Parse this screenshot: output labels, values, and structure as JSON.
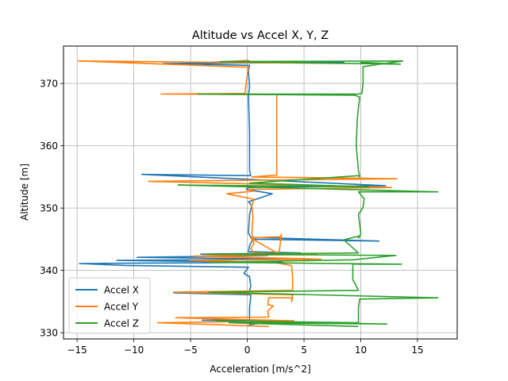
{
  "chart_data": {
    "type": "line",
    "title": "Altitude vs Accel X, Y, Z",
    "xlabel": "Acceleration [m/s^2]",
    "ylabel": "Altitude [m]",
    "xlim": [
      -16.2,
      18.5
    ],
    "ylim": [
      329,
      376
    ],
    "xticks": [
      -15,
      -10,
      -5,
      0,
      5,
      10,
      15
    ],
    "yticks": [
      330,
      340,
      350,
      360,
      370
    ],
    "grid": true,
    "legend_position": "lower-left",
    "series": [
      {
        "name": "Accel X",
        "color": "#1f77b4",
        "points": [
          [
            0.1,
            331
          ],
          [
            0.2,
            331.3
          ],
          [
            2.8,
            331.9
          ],
          [
            -4,
            332
          ],
          [
            0.2,
            332.1
          ],
          [
            0.2,
            334
          ],
          [
            0.3,
            335.8
          ],
          [
            0.3,
            336.1
          ],
          [
            -6.5,
            336.4
          ],
          [
            0.2,
            336.6
          ],
          [
            0.3,
            337.5
          ],
          [
            0.2,
            339
          ],
          [
            -0.3,
            339.5
          ],
          [
            0.1,
            340.5
          ],
          [
            -10.8,
            340.8
          ],
          [
            -14.8,
            341.1
          ],
          [
            3.1,
            341.3
          ],
          [
            -11.5,
            341.6
          ],
          [
            4.2,
            341.8
          ],
          [
            -9.7,
            342.1
          ],
          [
            1.8,
            342.4
          ],
          [
            -4.1,
            342.6
          ],
          [
            4.7,
            342.8
          ],
          [
            0.1,
            343
          ],
          [
            0.2,
            344
          ],
          [
            0.5,
            345
          ],
          [
            11.6,
            344.7
          ],
          [
            0.3,
            345.3
          ],
          [
            0.1,
            346
          ],
          [
            0.2,
            349
          ],
          [
            0.4,
            350.4
          ],
          [
            0.1,
            351
          ],
          [
            2.2,
            352.3
          ],
          [
            -0.1,
            353
          ],
          [
            0.1,
            353.3
          ],
          [
            12.2,
            353.6
          ],
          [
            -9.3,
            355.4
          ],
          [
            0.3,
            355.2
          ],
          [
            0.2,
            356
          ],
          [
            0.2,
            362
          ],
          [
            0.1,
            368
          ],
          [
            0.2,
            369.5
          ],
          [
            0.1,
            372
          ],
          [
            0.2,
            372.9
          ],
          [
            -7.4,
            373.2
          ],
          [
            8.5,
            373.4
          ],
          [
            -1.4,
            373.5
          ],
          [
            0.2,
            373.6
          ]
        ]
      },
      {
        "name": "Accel Y",
        "color": "#ff7f0e",
        "points": [
          [
            1.9,
            331
          ],
          [
            -7.9,
            331.6
          ],
          [
            4.1,
            331.9
          ],
          [
            -6.3,
            332.4
          ],
          [
            1.9,
            332.5
          ],
          [
            1.8,
            333.5
          ],
          [
            2.3,
            334.3
          ],
          [
            1.8,
            334.5
          ],
          [
            1.9,
            335.6
          ],
          [
            4,
            335.6
          ],
          [
            3.9,
            335
          ],
          [
            4,
            336.1
          ],
          [
            -6.5,
            336.5
          ],
          [
            4,
            336.8
          ],
          [
            4,
            339
          ],
          [
            3.9,
            340.8
          ],
          [
            2.6,
            341.2
          ],
          [
            -5.1,
            341.6
          ],
          [
            6.5,
            341.8
          ],
          [
            -4.7,
            342.3
          ],
          [
            6.1,
            342.6
          ],
          [
            0.6,
            342.8
          ],
          [
            0.3,
            343.5
          ],
          [
            0.6,
            344.4
          ],
          [
            0.3,
            345.2
          ],
          [
            2.9,
            345.4
          ],
          [
            3,
            344.8
          ],
          [
            3,
            345.8
          ],
          [
            2.8,
            342.6
          ],
          [
            0.5,
            345
          ],
          [
            0.4,
            346
          ],
          [
            0.5,
            348.5
          ],
          [
            0.4,
            350.5
          ],
          [
            0.6,
            351.4
          ],
          [
            -1.8,
            352.3
          ],
          [
            0.5,
            352.7
          ],
          [
            0.1,
            353
          ],
          [
            12.7,
            353.3
          ],
          [
            -8.7,
            354.3
          ],
          [
            13.2,
            354.7
          ],
          [
            0.4,
            355
          ],
          [
            2.6,
            355.3
          ],
          [
            2.6,
            356
          ],
          [
            2.6,
            362
          ],
          [
            2.6,
            368
          ],
          [
            2.6,
            368.2
          ],
          [
            -7.6,
            368.3
          ],
          [
            -0.2,
            368.4
          ],
          [
            -0.1,
            370
          ],
          [
            0.1,
            372.6
          ],
          [
            -14.9,
            373.6
          ],
          [
            8.6,
            373.2
          ],
          [
            -3.2,
            373.4
          ],
          [
            0.1,
            373.7
          ]
        ]
      },
      {
        "name": "Accel Z",
        "color": "#2ca02c",
        "points": [
          [
            9.8,
            331
          ],
          [
            -1.6,
            331.6
          ],
          [
            12.3,
            331.4
          ],
          [
            -2.7,
            331.9
          ],
          [
            9.8,
            331.6
          ],
          [
            9.8,
            334
          ],
          [
            9.9,
            335.4
          ],
          [
            16.8,
            335.6
          ],
          [
            -3.4,
            336.5
          ],
          [
            9.8,
            336.8
          ],
          [
            9.3,
            338.5
          ],
          [
            9.3,
            341
          ],
          [
            13.6,
            341
          ],
          [
            -3.3,
            341.3
          ],
          [
            9.3,
            341.7
          ],
          [
            13.1,
            342.4
          ],
          [
            -3.6,
            342.6
          ],
          [
            9.8,
            342.8
          ],
          [
            8.5,
            344.9
          ],
          [
            9.8,
            345.5
          ],
          [
            9.8,
            345.2
          ],
          [
            9.9,
            345.4
          ],
          [
            10,
            346
          ],
          [
            9.8,
            349
          ],
          [
            10.2,
            350.1
          ],
          [
            10.3,
            351.5
          ],
          [
            9.8,
            352.6
          ],
          [
            16.8,
            352.6
          ],
          [
            -6.1,
            353.7
          ],
          [
            10.7,
            353.4
          ],
          [
            0.2,
            354
          ],
          [
            9.8,
            355.2
          ],
          [
            9.9,
            355
          ],
          [
            9.8,
            356
          ],
          [
            9.6,
            360
          ],
          [
            9.7,
            364.5
          ],
          [
            9.9,
            367.8
          ],
          [
            9.5,
            368.1
          ],
          [
            -4.4,
            368.3
          ],
          [
            9.8,
            368.3
          ],
          [
            10.1,
            368.4
          ],
          [
            10.2,
            370
          ],
          [
            10.2,
            372.7
          ],
          [
            13.7,
            373.6
          ],
          [
            -2.4,
            373.5
          ],
          [
            13.5,
            373.1
          ],
          [
            10,
            373.4
          ],
          [
            10.2,
            373.6
          ]
        ]
      }
    ]
  }
}
